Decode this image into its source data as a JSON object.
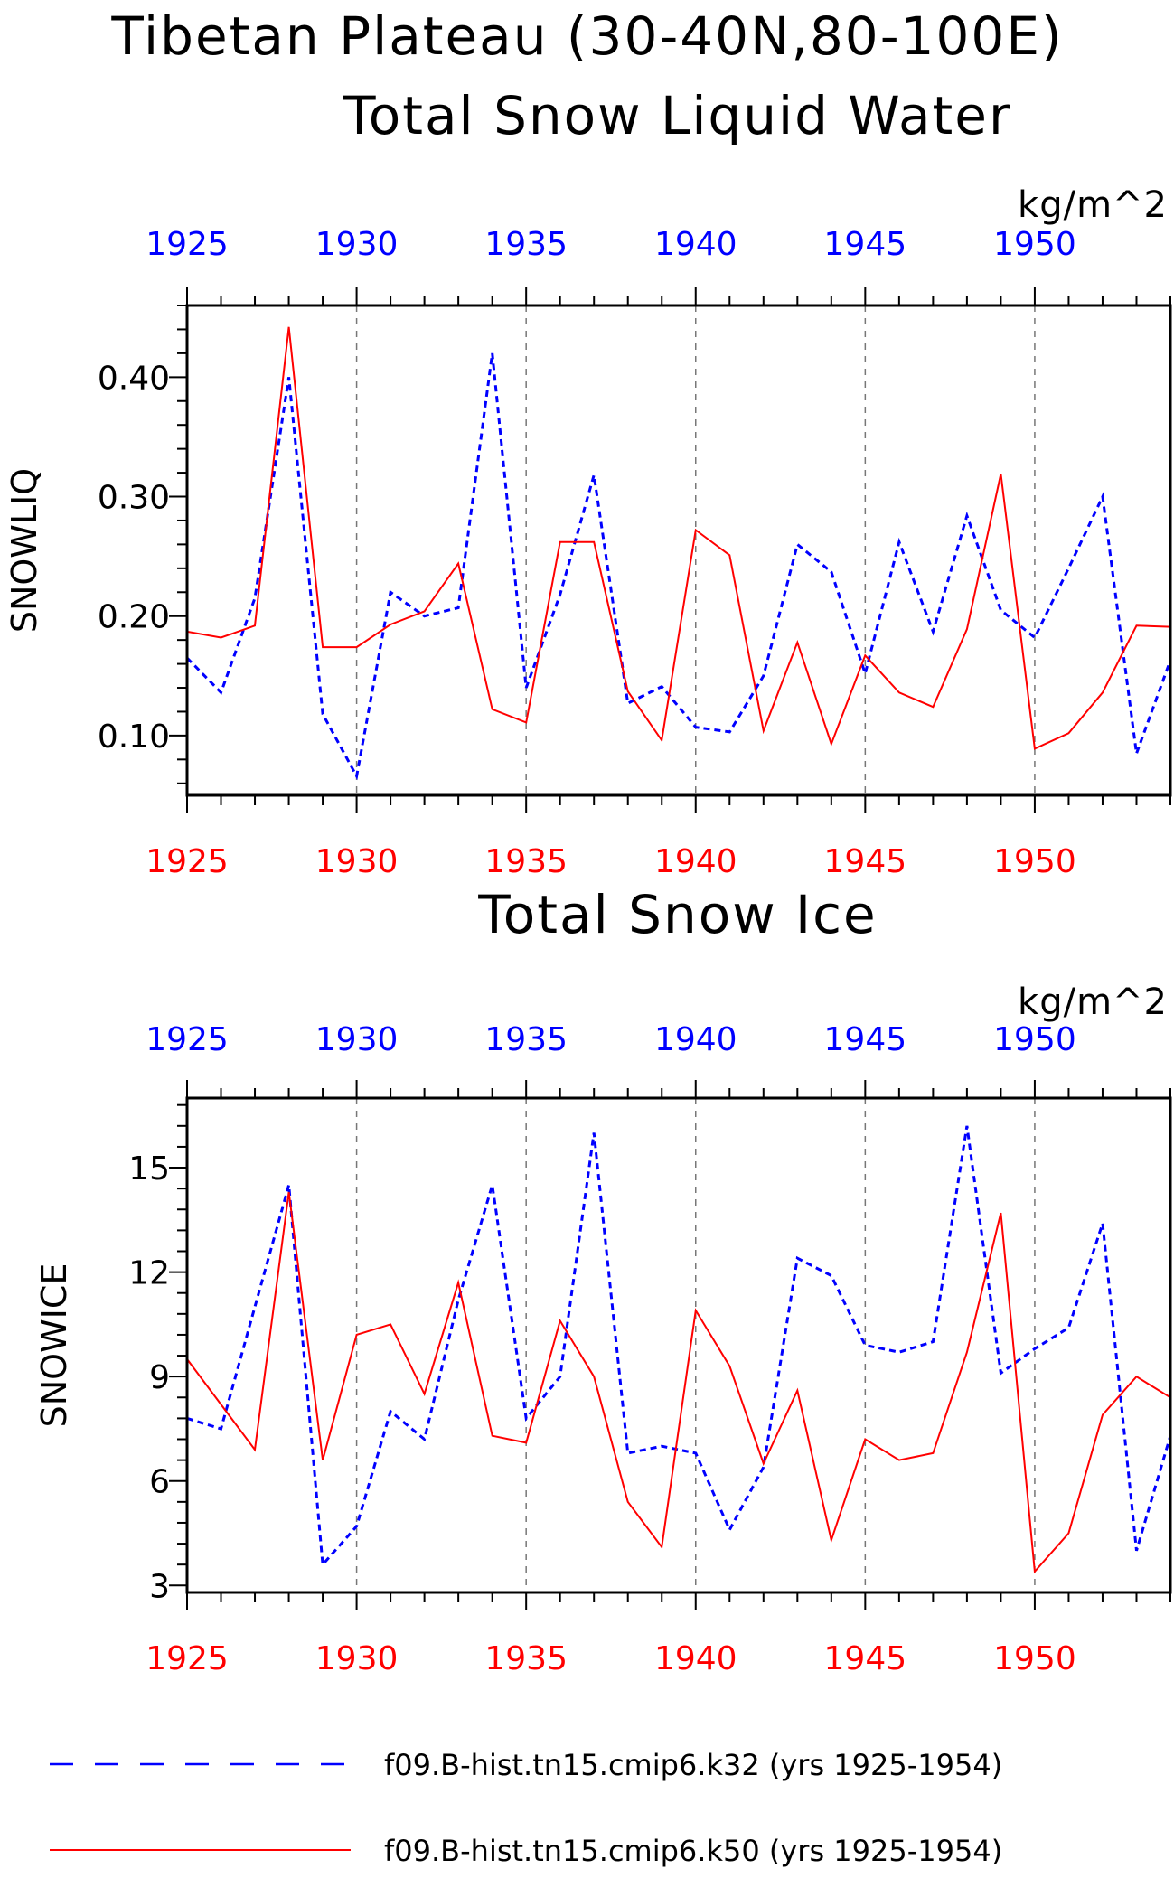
{
  "main_title": "Tibetan Plateau (30-40N,80-100E)",
  "colors": {
    "k32": "#0000ff",
    "k50": "#ff0000",
    "frame": "#000000",
    "grid": "#777777"
  },
  "chart_data": [
    {
      "type": "line",
      "title": "Total Snow Liquid Water",
      "units": "kg/m^2",
      "ylabel": "SNOWLIQ",
      "xlabel": "",
      "grid": "vertical dashed lines at 1930, 1935, 1940, 1945, 1950",
      "x": [
        1925,
        1926,
        1927,
        1928,
        1929,
        1930,
        1931,
        1932,
        1933,
        1934,
        1935,
        1936,
        1937,
        1938,
        1939,
        1940,
        1941,
        1942,
        1943,
        1944,
        1945,
        1946,
        1947,
        1948,
        1949,
        1950,
        1951,
        1952,
        1953,
        1954
      ],
      "xlim": [
        1925,
        1954
      ],
      "ylim": [
        0.05,
        0.46
      ],
      "x_ticks": [
        1925,
        1930,
        1935,
        1940,
        1945,
        1950
      ],
      "x_tick_labels": [
        "1925",
        "1930",
        "1935",
        "1940",
        "1945",
        "1950"
      ],
      "y_ticks": [
        0.1,
        0.2,
        0.3,
        0.4
      ],
      "y_tick_labels": [
        "0.10",
        "0.20",
        "0.30",
        "0.40"
      ],
      "series": [
        {
          "name": "f09.B-hist.tn15.cmip6.k32 (yrs 1925-1954)",
          "color": "#0000ff",
          "style": "dashed",
          "values": [
            0.165,
            0.136,
            0.215,
            0.4,
            0.118,
            0.066,
            0.22,
            0.2,
            0.207,
            0.42,
            0.14,
            0.218,
            0.318,
            0.127,
            0.141,
            0.107,
            0.103,
            0.15,
            0.26,
            0.237,
            0.152,
            0.262,
            0.187,
            0.284,
            0.205,
            0.182,
            0.24,
            0.3,
            0.085,
            0.163
          ]
        },
        {
          "name": "f09.B-hist.tn15.cmip6.k50 (yrs 1925-1954)",
          "color": "#ff0000",
          "style": "solid",
          "values": [
            0.187,
            0.182,
            0.192,
            0.442,
            0.174,
            0.174,
            0.193,
            0.204,
            0.244,
            0.122,
            0.111,
            0.262,
            0.262,
            0.137,
            0.096,
            0.272,
            0.251,
            0.104,
            0.178,
            0.093,
            0.167,
            0.136,
            0.124,
            0.189,
            0.319,
            0.089,
            0.102,
            0.136,
            0.192,
            0.191
          ]
        }
      ]
    },
    {
      "type": "line",
      "title": "Total Snow Ice",
      "units": "kg/m^2",
      "ylabel": "SNOWICE",
      "xlabel": "",
      "grid": "vertical dashed lines at 1930, 1935, 1940, 1945, 1950",
      "x": [
        1925,
        1926,
        1927,
        1928,
        1929,
        1930,
        1931,
        1932,
        1933,
        1934,
        1935,
        1936,
        1937,
        1938,
        1939,
        1940,
        1941,
        1942,
        1943,
        1944,
        1945,
        1946,
        1947,
        1948,
        1949,
        1950,
        1951,
        1952,
        1953,
        1954
      ],
      "xlim": [
        1925,
        1954
      ],
      "ylim": [
        2.8,
        17.0
      ],
      "x_ticks": [
        1925,
        1930,
        1935,
        1940,
        1945,
        1950
      ],
      "x_tick_labels": [
        "1925",
        "1930",
        "1935",
        "1940",
        "1945",
        "1950"
      ],
      "y_ticks": [
        3,
        6,
        9,
        12,
        15
      ],
      "y_tick_labels": [
        "3",
        "6",
        "9",
        "12",
        "15"
      ],
      "series": [
        {
          "name": "f09.B-hist.tn15.cmip6.k32 (yrs 1925-1954)",
          "color": "#0000ff",
          "style": "dashed",
          "values": [
            7.8,
            7.5,
            11.0,
            14.5,
            3.6,
            4.7,
            8.0,
            7.2,
            11.2,
            14.5,
            7.8,
            9.0,
            16.0,
            6.8,
            7.0,
            6.8,
            4.6,
            6.4,
            12.4,
            11.9,
            9.9,
            9.7,
            10.0,
            16.2,
            9.1,
            9.8,
            10.4,
            13.4,
            4.0,
            7.3
          ]
        },
        {
          "name": "f09.B-hist.tn15.cmip6.k50 (yrs 1925-1954)",
          "color": "#ff0000",
          "style": "solid",
          "values": [
            9.5,
            8.2,
            6.9,
            14.3,
            6.6,
            10.2,
            10.5,
            8.5,
            11.7,
            7.3,
            7.1,
            10.6,
            9.0,
            5.4,
            4.1,
            10.9,
            9.3,
            6.5,
            8.6,
            4.3,
            7.2,
            6.6,
            6.8,
            9.7,
            13.7,
            3.4,
            4.5,
            7.9,
            9.0,
            8.4
          ]
        }
      ]
    }
  ],
  "legend": {
    "items": [
      {
        "label": "f09.B-hist.tn15.cmip6.k32 (yrs 1925-1954)",
        "color": "#0000ff",
        "style": "dashed"
      },
      {
        "label": "f09.B-hist.tn15.cmip6.k50 (yrs 1925-1954)",
        "color": "#ff0000",
        "style": "solid"
      }
    ]
  }
}
